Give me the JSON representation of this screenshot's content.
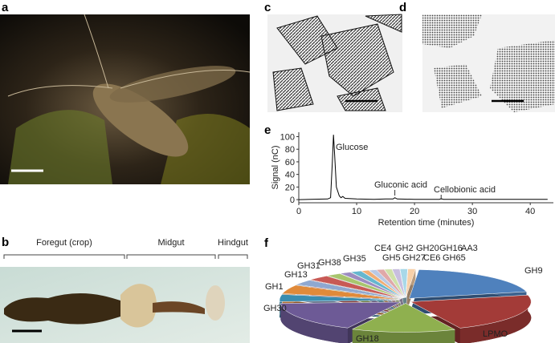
{
  "panel_labels": [
    "a",
    "b",
    "c",
    "d",
    "e",
    "f"
  ],
  "gut_regions": [
    "Foregut (crop)",
    "Midgut",
    "Hindgut"
  ],
  "chart_data": [
    {
      "type": "line",
      "xlabel": "Retention time (minutes)",
      "ylabel": "Signal (nC)",
      "annotations": [
        "Glucose",
        "Gluconic acid",
        "Cellobionic acid"
      ],
      "x": [
        0,
        2,
        5,
        5.5,
        5.8,
        6,
        6.2,
        6.5,
        7,
        7.3,
        7.6,
        8,
        10,
        13,
        15,
        16.3,
        16.6,
        17,
        20,
        24.3,
        24.6,
        25,
        30,
        35,
        40,
        43
      ],
      "values": [
        0,
        0.5,
        1,
        3,
        60,
        103,
        70,
        20,
        6,
        3,
        5,
        2,
        1,
        0.5,
        1,
        1,
        3,
        1,
        0.5,
        0.5,
        1.5,
        0.5,
        0.3,
        0.3,
        0.3,
        0.3
      ],
      "color": "#000000",
      "xlim": [
        0,
        44
      ],
      "ylim": [
        -5,
        107
      ],
      "xticks": [
        0,
        10,
        20,
        30,
        40
      ],
      "yticks": [
        0,
        20,
        40,
        60,
        80,
        100
      ]
    },
    {
      "type": "pie",
      "categories": [
        "GH9",
        "LPMO",
        "GH18",
        "GH30",
        "GH1",
        "GH13",
        "GH31",
        "GH38",
        "GH35",
        "GH5",
        "GH27",
        "CE6",
        "GH65",
        "CE4",
        "GH2",
        "GH20",
        "GH16",
        "AA3"
      ],
      "values": [
        20,
        22,
        14,
        17,
        4,
        5,
        3,
        3,
        2,
        1.5,
        1.5,
        1,
        1,
        1,
        1,
        1,
        1,
        1
      ],
      "colors": [
        "#4f81bd",
        "#a33b38",
        "#8fb04f",
        "#6d5a96",
        "#3a8db0",
        "#e08a3a",
        "#8fa8d0",
        "#c85a55",
        "#a8c56d",
        "#9c8cc0",
        "#65b7cf",
        "#f0ad73",
        "#b8c8e4",
        "#e0a8a8",
        "#cfe0a8",
        "#c8bedf",
        "#a8d8e8",
        "#f8d0a8"
      ]
    }
  ]
}
